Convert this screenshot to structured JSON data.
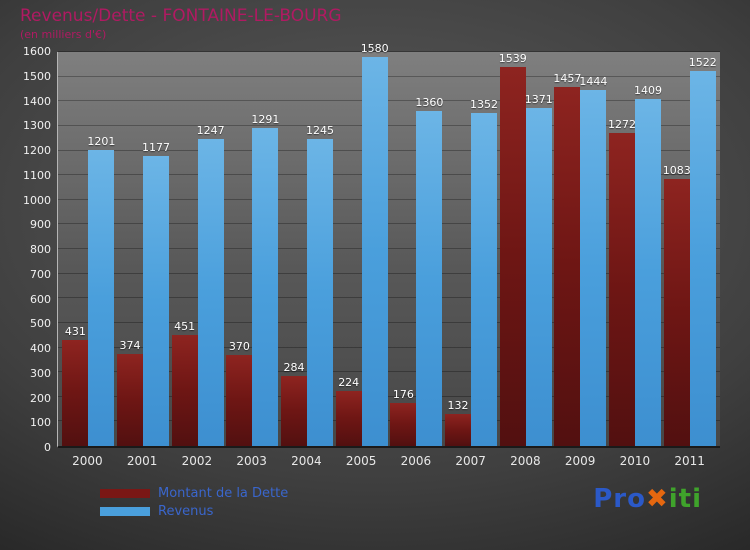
{
  "title": "Revenus/Dette - FONTAINE-LE-BOURG",
  "subtitle": "(en milliers d'€)",
  "chart_data": {
    "type": "bar",
    "categories": [
      "2000",
      "2001",
      "2002",
      "2003",
      "2004",
      "2005",
      "2006",
      "2007",
      "2008",
      "2009",
      "2010",
      "2011"
    ],
    "series": [
      {
        "name": "Montant de la Dette",
        "color": "#7a1715",
        "values": [
          431,
          374,
          451,
          370,
          284,
          224,
          176,
          132,
          1539,
          1457,
          1272,
          1083
        ]
      },
      {
        "name": "Revenus",
        "color": "#4a9fdc",
        "values": [
          1201,
          1177,
          1247,
          1291,
          1245,
          1580,
          1360,
          1352,
          1371,
          1444,
          1409,
          1522
        ]
      }
    ],
    "title": "Revenus/Dette - FONTAINE-LE-BOURG",
    "xlabel": "",
    "ylabel": "",
    "ylim": [
      0,
      1600
    ],
    "ytick_step": 100,
    "grid": true,
    "legend_position": "bottom-left"
  },
  "legend": {
    "items": [
      {
        "label": "Montant de la Dette",
        "color": "#7a1715"
      },
      {
        "label": "Revenus",
        "color": "#4a9fdc"
      }
    ]
  },
  "logo": {
    "alt": "Proxiti",
    "parts": [
      {
        "text": "Pro",
        "color": "#2b59c8"
      },
      {
        "text": "✖",
        "color": "#e5670f"
      },
      {
        "text": "iti",
        "color": "#3fa32b"
      }
    ]
  }
}
